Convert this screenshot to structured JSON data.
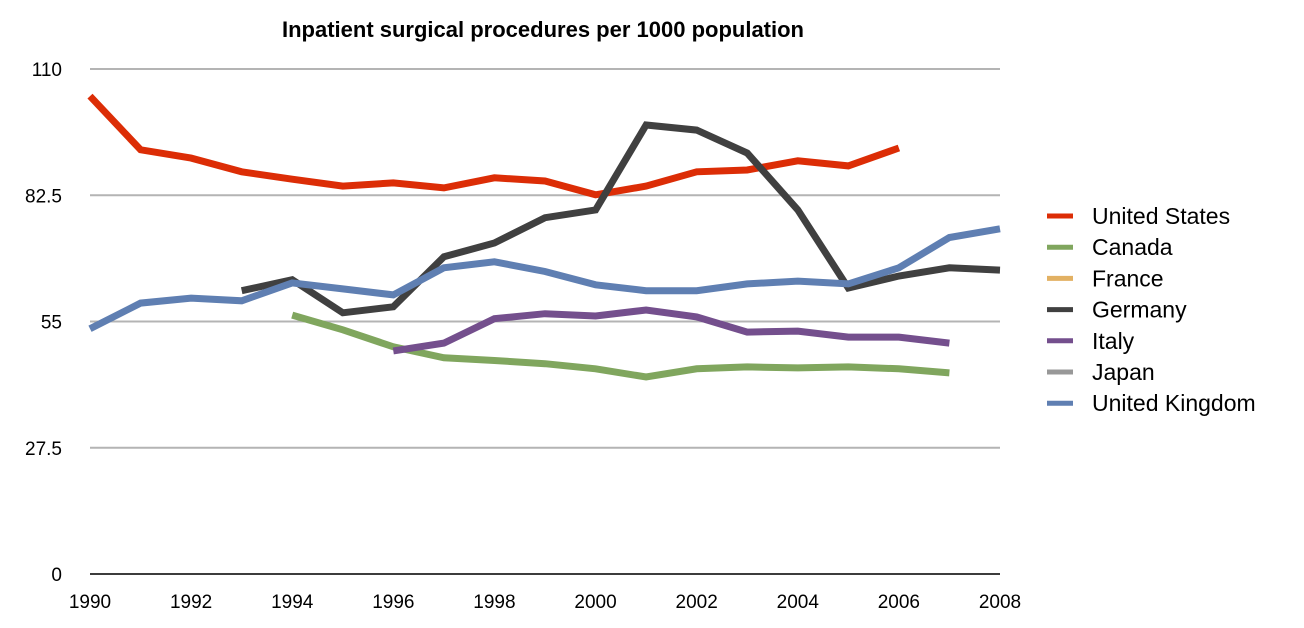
{
  "chart_data": {
    "type": "line",
    "title": "Inpatient surgical procedures per 1000 population",
    "xlabel": "",
    "ylabel": "",
    "x": [
      1990,
      1991,
      1992,
      1993,
      1994,
      1995,
      1996,
      1997,
      1998,
      1999,
      2000,
      2001,
      2002,
      2003,
      2004,
      2005,
      2006,
      2007,
      2008
    ],
    "xlim": [
      1990,
      2008
    ],
    "ylim": [
      0,
      110
    ],
    "yticks": [
      0,
      27.5,
      55,
      82.5,
      110
    ],
    "ytick_labels": [
      "0",
      "27.5",
      "55",
      "82.5",
      "110"
    ],
    "xticks": [
      1990,
      1992,
      1994,
      1996,
      1998,
      2000,
      2002,
      2004,
      2006,
      2008
    ],
    "xtick_labels": [
      "1990",
      "1992",
      "1994",
      "1996",
      "1998",
      "2000",
      "2002",
      "2004",
      "2006",
      "2008"
    ],
    "grid": true,
    "legend_position": "right",
    "series": [
      {
        "name": "United States",
        "color": "#dc2d06",
        "values": [
          104.1,
          92.4,
          90.6,
          87.6,
          86.0,
          84.5,
          85.2,
          84.1,
          86.3,
          85.6,
          82.6,
          84.5,
          87.6,
          88.0,
          90.0,
          88.9,
          92.8,
          null,
          null
        ]
      },
      {
        "name": "Canada",
        "color": "#80a65e",
        "values": [
          null,
          null,
          null,
          null,
          56.4,
          53.2,
          49.5,
          47.1,
          46.5,
          45.8,
          44.7,
          42.9,
          44.7,
          45.1,
          44.9,
          45.1,
          44.7,
          43.8,
          null
        ]
      },
      {
        "name": "France",
        "color": "#e2b163",
        "values": [
          null,
          null,
          null,
          null,
          null,
          null,
          null,
          null,
          null,
          null,
          null,
          null,
          null,
          null,
          null,
          null,
          null,
          null,
          null
        ]
      },
      {
        "name": "Germany",
        "color": "#404040",
        "values": [
          null,
          null,
          null,
          61.7,
          64.1,
          56.9,
          58.2,
          69.1,
          72.1,
          77.6,
          79.3,
          97.8,
          96.7,
          91.7,
          79.3,
          62.3,
          64.9,
          66.7,
          66.2
        ]
      },
      {
        "name": "Italy",
        "color": "#744f8d",
        "values": [
          null,
          null,
          null,
          null,
          null,
          null,
          48.6,
          50.3,
          55.6,
          56.7,
          56.2,
          57.5,
          56.0,
          52.7,
          52.9,
          51.6,
          51.6,
          50.3,
          null
        ]
      },
      {
        "name": "Japan",
        "color": "#989898",
        "values": [
          null,
          null,
          null,
          null,
          null,
          null,
          null,
          null,
          null,
          null,
          null,
          null,
          null,
          null,
          null,
          null,
          null,
          null,
          null
        ]
      },
      {
        "name": "United Kingdom",
        "color": "#5f7fb2",
        "values": [
          53.4,
          59.0,
          60.1,
          59.5,
          63.4,
          62.1,
          60.8,
          66.7,
          68.0,
          65.9,
          63.0,
          61.7,
          61.7,
          63.2,
          63.8,
          63.2,
          66.7,
          73.3,
          75.2
        ]
      }
    ]
  }
}
